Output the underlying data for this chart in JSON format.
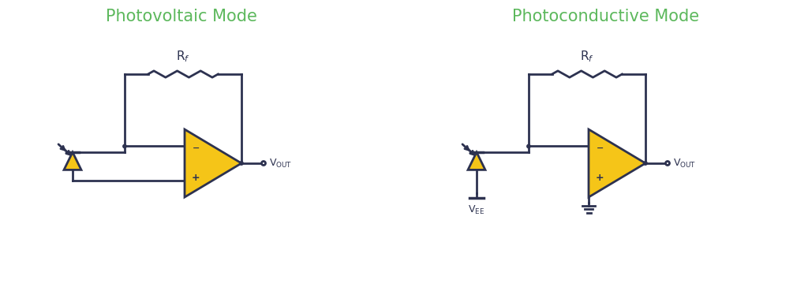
{
  "title_left": "Photovoltaic Mode",
  "title_right": "Photoconductive Mode",
  "title_color": "#5cb85c",
  "title_fontsize": 15,
  "bg_color": "#ffffff",
  "line_color": "#2d3250",
  "line_width": 2.0,
  "fill_color": "#f5c518",
  "fill_edge_color": "#2d3250",
  "text_color": "#2d3250"
}
